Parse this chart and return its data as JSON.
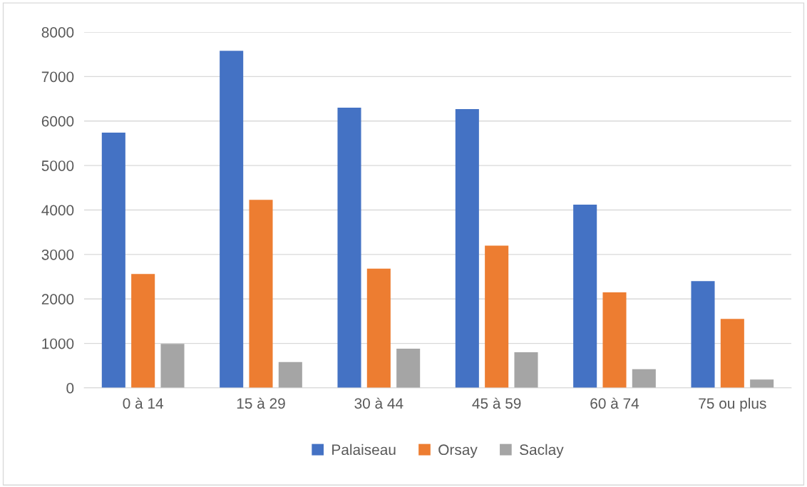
{
  "chart_data": {
    "type": "bar",
    "categories": [
      "0 à 14",
      "15 à 29",
      "30 à 44",
      "45 à 59",
      "60 à 74",
      "75 ou plus"
    ],
    "series": [
      {
        "name": "Palaiseau",
        "color": "#4472c4",
        "values": [
          5740,
          7580,
          6300,
          6270,
          4120,
          2400
        ]
      },
      {
        "name": "Orsay",
        "color": "#ed7d31",
        "values": [
          2560,
          4230,
          2680,
          3200,
          2150,
          1550
        ]
      },
      {
        "name": "Saclay",
        "color": "#a5a5a5",
        "values": [
          990,
          580,
          880,
          800,
          420,
          190
        ]
      }
    ],
    "ylim": [
      0,
      8000
    ],
    "yticks": [
      0,
      1000,
      2000,
      3000,
      4000,
      5000,
      6000,
      7000,
      8000
    ],
    "grid": "y",
    "legend": "bottom"
  }
}
